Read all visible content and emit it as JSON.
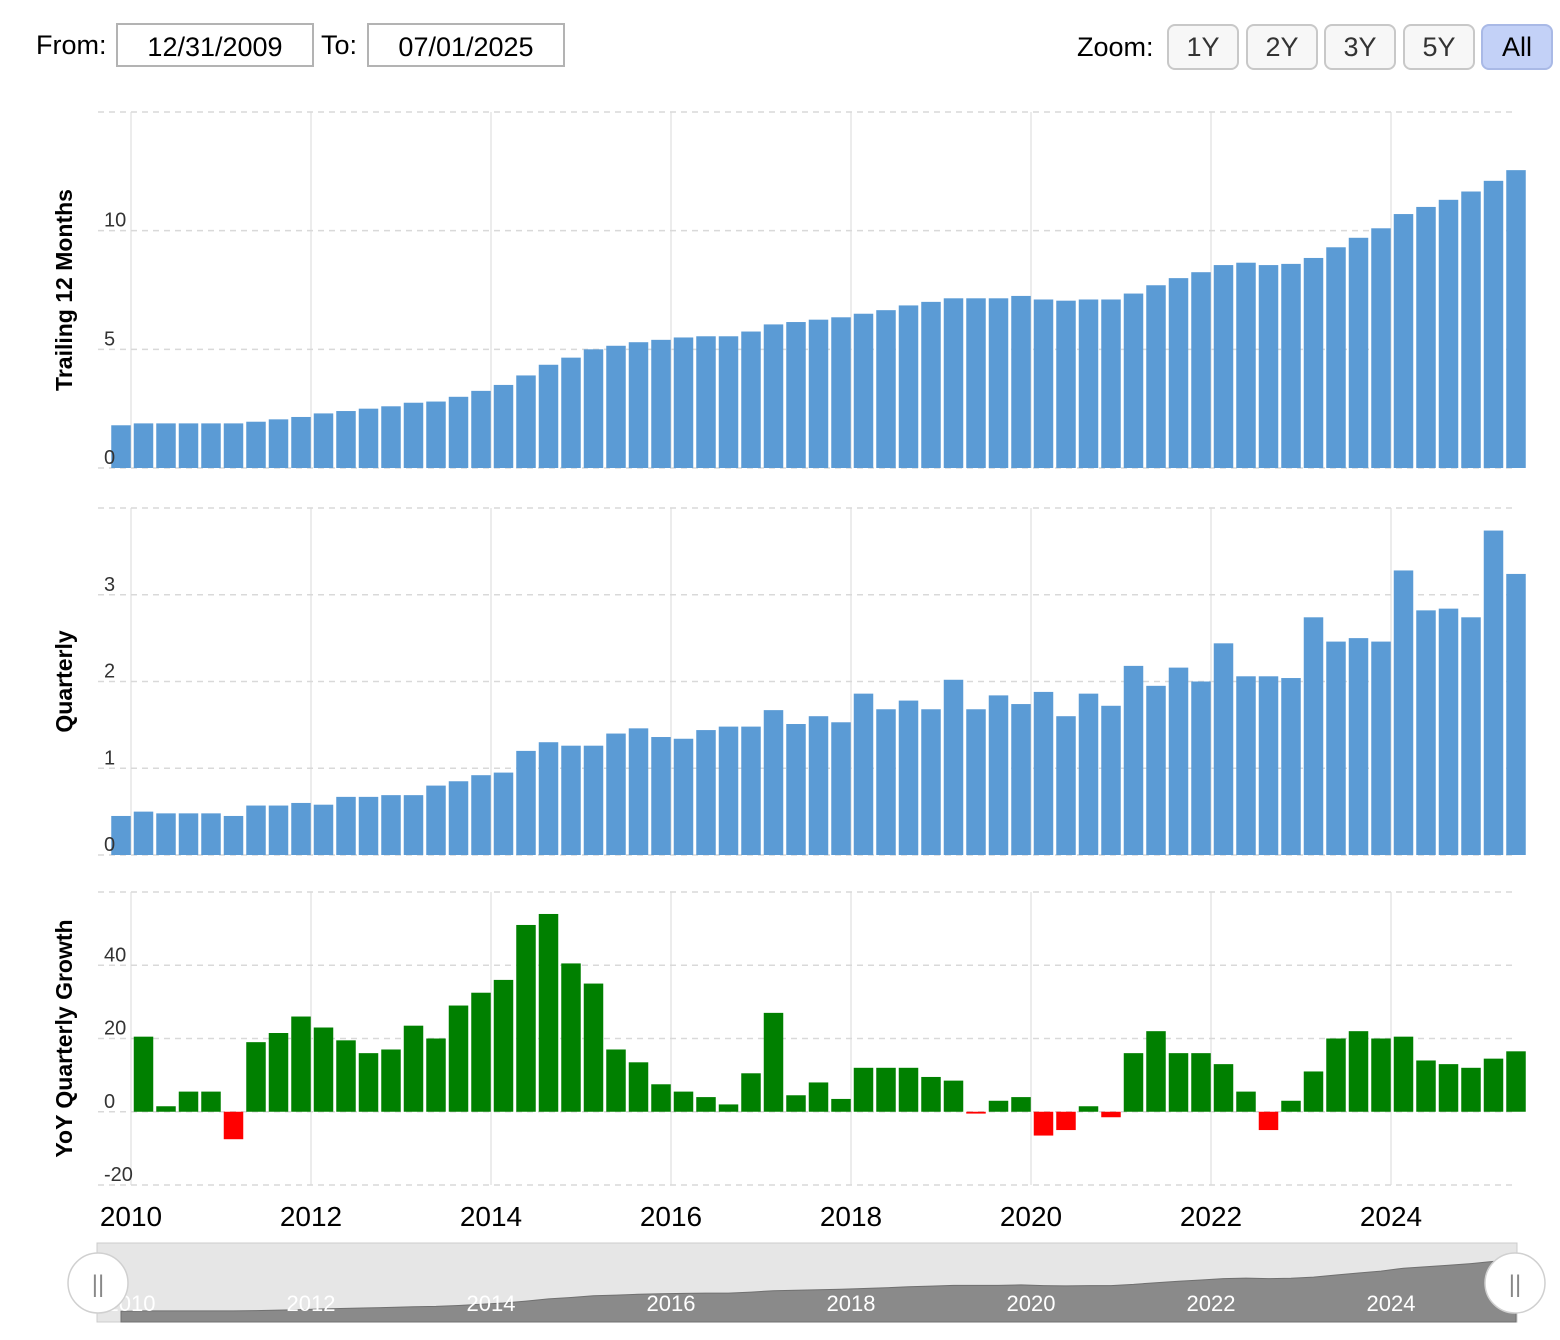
{
  "range": {
    "from_label": "From:",
    "from_value": "12/31/2009",
    "to_label": "To:",
    "to_value": "07/01/2025",
    "zoom_label": "Zoom:",
    "zoom_buttons": [
      "1Y",
      "2Y",
      "3Y",
      "5Y",
      "All"
    ],
    "zoom_active": "All"
  },
  "colors": {
    "bar_blue": "#5b9bd5",
    "bar_green": "#008000",
    "bar_red": "#ff0000",
    "grid": "#d9d9d9",
    "navigator_fill": "#8a8a8a"
  },
  "chart_data": [
    {
      "type": "bar",
      "ylabel": "Trailing 12 Months",
      "y_ticks": [
        0,
        5,
        10
      ],
      "ylim": [
        0,
        15
      ],
      "x_axis_labels": [
        "2010",
        "2012",
        "2014",
        "2016",
        "2018",
        "2020",
        "2022",
        "2024"
      ],
      "x": [
        "2010-Q1",
        "2010-Q2",
        "2010-Q3",
        "2010-Q4",
        "2011-Q1",
        "2011-Q2",
        "2011-Q3",
        "2011-Q4",
        "2012-Q1",
        "2012-Q2",
        "2012-Q3",
        "2012-Q4",
        "2013-Q1",
        "2013-Q2",
        "2013-Q3",
        "2013-Q4",
        "2014-Q1",
        "2014-Q2",
        "2014-Q3",
        "2014-Q4",
        "2015-Q1",
        "2015-Q2",
        "2015-Q3",
        "2015-Q4",
        "2016-Q1",
        "2016-Q2",
        "2016-Q3",
        "2016-Q4",
        "2017-Q1",
        "2017-Q2",
        "2017-Q3",
        "2017-Q4",
        "2018-Q1",
        "2018-Q2",
        "2018-Q3",
        "2018-Q4",
        "2019-Q1",
        "2019-Q2",
        "2019-Q3",
        "2019-Q4",
        "2020-Q1",
        "2020-Q2",
        "2020-Q3",
        "2020-Q4",
        "2021-Q1",
        "2021-Q2",
        "2021-Q3",
        "2021-Q4",
        "2022-Q1",
        "2022-Q2",
        "2022-Q3",
        "2022-Q4",
        "2023-Q1",
        "2023-Q2",
        "2023-Q3",
        "2023-Q4",
        "2024-Q1",
        "2024-Q2",
        "2024-Q3",
        "2024-Q4",
        "2025-Q1",
        "2025-Q2",
        "2025-Q3"
      ],
      "values": [
        1.8,
        1.88,
        1.88,
        1.88,
        1.88,
        1.88,
        1.95,
        2.05,
        2.15,
        2.3,
        2.4,
        2.5,
        2.6,
        2.75,
        2.8,
        3.0,
        3.25,
        3.5,
        3.9,
        4.35,
        4.65,
        5.0,
        5.15,
        5.3,
        5.4,
        5.5,
        5.55,
        5.55,
        5.75,
        6.05,
        6.15,
        6.25,
        6.35,
        6.5,
        6.65,
        6.85,
        7.0,
        7.15,
        7.15,
        7.15,
        7.25,
        7.1,
        7.05,
        7.1,
        7.1,
        7.35,
        7.7,
        8.0,
        8.25,
        8.55,
        8.65,
        8.55,
        8.6,
        8.85,
        9.3,
        9.7,
        10.1,
        10.7,
        11.0,
        11.3,
        11.65,
        12.1,
        12.55
      ],
      "grid": true
    },
    {
      "type": "bar",
      "ylabel": "Quarterly",
      "y_ticks": [
        0,
        1,
        2,
        3
      ],
      "ylim": [
        0,
        4
      ],
      "x": [
        "2010-Q1",
        "2010-Q2",
        "2010-Q3",
        "2010-Q4",
        "2011-Q1",
        "2011-Q2",
        "2011-Q3",
        "2011-Q4",
        "2012-Q1",
        "2012-Q2",
        "2012-Q3",
        "2012-Q4",
        "2013-Q1",
        "2013-Q2",
        "2013-Q3",
        "2013-Q4",
        "2014-Q1",
        "2014-Q2",
        "2014-Q3",
        "2014-Q4",
        "2015-Q1",
        "2015-Q2",
        "2015-Q3",
        "2015-Q4",
        "2016-Q1",
        "2016-Q2",
        "2016-Q3",
        "2016-Q4",
        "2017-Q1",
        "2017-Q2",
        "2017-Q3",
        "2017-Q4",
        "2018-Q1",
        "2018-Q2",
        "2018-Q3",
        "2018-Q4",
        "2019-Q1",
        "2019-Q2",
        "2019-Q3",
        "2019-Q4",
        "2020-Q1",
        "2020-Q2",
        "2020-Q3",
        "2020-Q4",
        "2021-Q1",
        "2021-Q2",
        "2021-Q3",
        "2021-Q4",
        "2022-Q1",
        "2022-Q2",
        "2022-Q3",
        "2022-Q4",
        "2023-Q1",
        "2023-Q2",
        "2023-Q3",
        "2023-Q4",
        "2024-Q1",
        "2024-Q2",
        "2024-Q3",
        "2024-Q4",
        "2025-Q1",
        "2025-Q2",
        "2025-Q3"
      ],
      "values": [
        0.45,
        0.5,
        0.48,
        0.48,
        0.48,
        0.45,
        0.57,
        0.57,
        0.6,
        0.58,
        0.67,
        0.67,
        0.69,
        0.69,
        0.8,
        0.85,
        0.92,
        0.95,
        1.2,
        1.3,
        1.26,
        1.26,
        1.4,
        1.46,
        1.36,
        1.34,
        1.44,
        1.48,
        1.48,
        1.67,
        1.51,
        1.6,
        1.53,
        1.86,
        1.68,
        1.78,
        1.68,
        2.02,
        1.68,
        1.84,
        1.74,
        1.88,
        1.6,
        1.86,
        1.72,
        2.18,
        1.95,
        2.16,
        2.0,
        2.44,
        2.06,
        2.06,
        2.04,
        2.74,
        2.46,
        2.5,
        2.46,
        3.28,
        2.82,
        2.84,
        2.74,
        3.74,
        3.24
      ],
      "grid": true
    },
    {
      "type": "bar",
      "ylabel": "YoY Quarterly Growth",
      "y_ticks": [
        -20,
        0,
        20,
        40
      ],
      "ylim": [
        -20,
        60
      ],
      "x": [
        "2010-Q2",
        "2010-Q3",
        "2010-Q4",
        "2011-Q1",
        "2011-Q2",
        "2011-Q3",
        "2011-Q4",
        "2012-Q1",
        "2012-Q2",
        "2012-Q3",
        "2012-Q4",
        "2013-Q1",
        "2013-Q2",
        "2013-Q3",
        "2013-Q4",
        "2014-Q1",
        "2014-Q2",
        "2014-Q3",
        "2014-Q4",
        "2015-Q1",
        "2015-Q2",
        "2015-Q3",
        "2015-Q4",
        "2016-Q1",
        "2016-Q2",
        "2016-Q3",
        "2016-Q4",
        "2017-Q1",
        "2017-Q2",
        "2017-Q3",
        "2017-Q4",
        "2018-Q1",
        "2018-Q2",
        "2018-Q3",
        "2018-Q4",
        "2019-Q1",
        "2019-Q2",
        "2019-Q3",
        "2019-Q4",
        "2020-Q1",
        "2020-Q2",
        "2020-Q3",
        "2020-Q4",
        "2021-Q1",
        "2021-Q2",
        "2021-Q3",
        "2021-Q4",
        "2022-Q1",
        "2022-Q2",
        "2022-Q3",
        "2022-Q4",
        "2023-Q1",
        "2023-Q2",
        "2023-Q3",
        "2023-Q4",
        "2024-Q1",
        "2024-Q2",
        "2024-Q3",
        "2024-Q4",
        "2025-Q1",
        "2025-Q2",
        "2025-Q3"
      ],
      "values": [
        20.5,
        1.5,
        5.5,
        5.5,
        -7.5,
        19,
        21.5,
        26,
        23,
        19.5,
        16,
        17,
        23.5,
        20,
        29,
        32.5,
        36,
        51,
        54,
        40.5,
        35,
        17,
        13.5,
        7.5,
        5.5,
        4,
        2,
        10.5,
        27,
        4.5,
        8,
        3.5,
        12,
        12,
        12,
        9.5,
        8.5,
        -0.5,
        3,
        4,
        -6.5,
        -5,
        1.5,
        -1.5,
        16,
        22,
        16,
        16,
        13,
        5.5,
        -5,
        3,
        11,
        20,
        22,
        20,
        20.5,
        14,
        13,
        12,
        14.5,
        16.5
      ],
      "positive_color": "#008000",
      "negative_color": "#ff0000",
      "grid": true
    }
  ],
  "navigator": {
    "x_labels": [
      "2010",
      "2012",
      "2014",
      "2016",
      "2018",
      "2020",
      "2022",
      "2024"
    ],
    "handle_glyph": "||"
  }
}
